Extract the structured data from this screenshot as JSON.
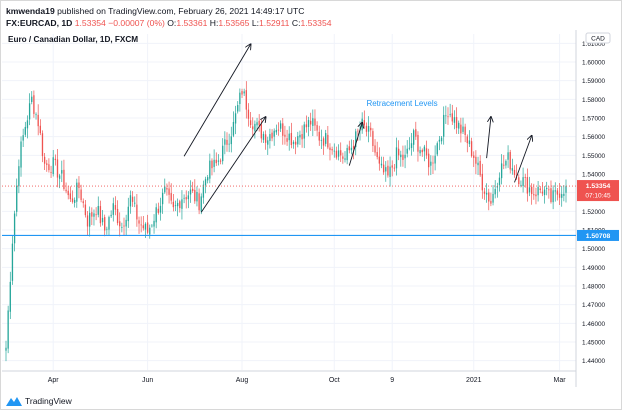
{
  "header": {
    "author": "kmwenda19",
    "published_text": "published on TradingView.com, February 26, 2021 14:49:17 UTC",
    "symbol": "FX:EURCAD, 1D",
    "last": "1.53354",
    "change": "−0.00007 (0%)",
    "open_label": "O:",
    "open": "1.53361",
    "high_label": "H:",
    "high": "1.53565",
    "low_label": "L:",
    "low": "1.52911",
    "close_label": "C:",
    "close": "1.53354"
  },
  "chart_title": "Euro / Canadian Dollar, 1D, FXCM",
  "footer": {
    "brand": "TradingView",
    "logo_icon": "tradingview-logo-icon"
  },
  "colors": {
    "up": "#26a69a",
    "down": "#ef5350",
    "support": "#2196f3",
    "annotation": "#2196f3",
    "price_tag": "#ef5350"
  },
  "chart_data": {
    "type": "candlestick",
    "currency_label": "CAD",
    "y_ticks": [
      1.61,
      1.6,
      1.59,
      1.58,
      1.57,
      1.56,
      1.55,
      1.54,
      1.53,
      1.52,
      1.51,
      1.5,
      1.49,
      1.48,
      1.47,
      1.46,
      1.45,
      1.44
    ],
    "y_tick_labels": [
      "1.61000",
      "1.60000",
      "1.59000",
      "1.58000",
      "1.57000",
      "1.56000",
      "1.55000",
      "1.54000",
      "1.53000",
      "1.52000",
      "1.51000",
      "1.50000",
      "1.49000",
      "1.48000",
      "1.47000",
      "1.46000",
      "1.45000",
      "1.44000"
    ],
    "ylim": [
      1.435,
      1.615
    ],
    "x_ticks": [
      {
        "label": "Apr",
        "index": 22
      },
      {
        "label": "Jun",
        "index": 66
      },
      {
        "label": "Aug",
        "index": 110
      },
      {
        "label": "Oct",
        "index": 153
      },
      {
        "label": "9",
        "index": 180
      },
      {
        "label": "2021",
        "index": 218
      },
      {
        "label": "Mar",
        "index": 258
      }
    ],
    "num_bars": 262,
    "last_price": 1.53354,
    "last_price_label": "1.53354",
    "countdown": "07:10:45",
    "support_level": 1.50708,
    "support_label": "1.50708",
    "annotation": {
      "text": "Retracement Levels",
      "price": 1.5765,
      "index": 168
    },
    "trend_lines": [
      {
        "start": [
          83,
          1.5495
        ],
        "end": [
          114,
          1.6095
        ]
      },
      {
        "start": [
          91,
          1.5195
        ],
        "end": [
          121,
          1.5705
        ]
      },
      {
        "start": [
          160,
          1.5445
        ],
        "end": [
          166,
          1.5675
        ]
      },
      {
        "start": [
          224,
          1.5485
        ],
        "end": [
          226,
          1.5705
        ]
      },
      {
        "start": [
          237,
          1.5355
        ],
        "end": [
          245,
          1.5605
        ]
      }
    ],
    "anchors": [
      [
        0,
        1.447
      ],
      [
        3,
        1.505
      ],
      [
        6,
        1.548
      ],
      [
        9,
        1.566
      ],
      [
        12,
        1.58
      ],
      [
        15,
        1.568
      ],
      [
        18,
        1.545
      ],
      [
        22,
        1.545
      ],
      [
        26,
        1.538
      ],
      [
        30,
        1.525
      ],
      [
        34,
        1.533
      ],
      [
        38,
        1.515
      ],
      [
        42,
        1.522
      ],
      [
        46,
        1.51
      ],
      [
        50,
        1.522
      ],
      [
        54,
        1.512
      ],
      [
        58,
        1.527
      ],
      [
        62,
        1.514
      ],
      [
        66,
        1.509
      ],
      [
        70,
        1.52
      ],
      [
        74,
        1.53
      ],
      [
        78,
        1.52
      ],
      [
        82,
        1.528
      ],
      [
        86,
        1.53
      ],
      [
        90,
        1.525
      ],
      [
        94,
        1.542
      ],
      [
        98,
        1.545
      ],
      [
        102,
        1.555
      ],
      [
        106,
        1.566
      ],
      [
        110,
        1.585
      ],
      [
        114,
        1.57
      ],
      [
        118,
        1.563
      ],
      [
        122,
        1.56
      ],
      [
        126,
        1.566
      ],
      [
        130,
        1.563
      ],
      [
        134,
        1.558
      ],
      [
        138,
        1.563
      ],
      [
        142,
        1.568
      ],
      [
        146,
        1.56
      ],
      [
        150,
        1.558
      ],
      [
        154,
        1.553
      ],
      [
        158,
        1.548
      ],
      [
        162,
        1.557
      ],
      [
        166,
        1.566
      ],
      [
        170,
        1.56
      ],
      [
        174,
        1.543
      ],
      [
        178,
        1.538
      ],
      [
        182,
        1.55
      ],
      [
        186,
        1.548
      ],
      [
        190,
        1.56
      ],
      [
        194,
        1.552
      ],
      [
        198,
        1.545
      ],
      [
        202,
        1.56
      ],
      [
        206,
        1.575
      ],
      [
        210,
        1.567
      ],
      [
        214,
        1.56
      ],
      [
        218,
        1.55
      ],
      [
        222,
        1.535
      ],
      [
        226,
        1.525
      ],
      [
        230,
        1.542
      ],
      [
        234,
        1.548
      ],
      [
        238,
        1.54
      ],
      [
        242,
        1.535
      ],
      [
        246,
        1.53
      ],
      [
        250,
        1.532
      ],
      [
        254,
        1.526
      ],
      [
        258,
        1.531
      ],
      [
        261,
        1.5335
      ]
    ]
  }
}
